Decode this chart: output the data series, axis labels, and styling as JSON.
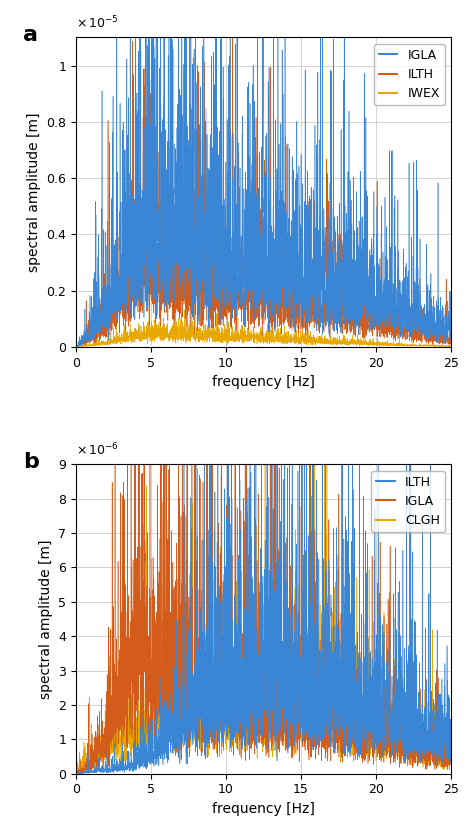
{
  "panel_a": {
    "label": "a",
    "legend": [
      "IGLA",
      "ILTH",
      "IWEX"
    ],
    "colors": [
      "#3a86d4",
      "#d45c1a",
      "#e8a800"
    ],
    "ylabel": "spectral amplitude [m]",
    "xlabel": "frequency [Hz]",
    "xlim": [
      0,
      25
    ],
    "ylim": [
      0,
      1.1e-05
    ],
    "yticks": [
      0,
      2e-06,
      4e-06,
      6e-06,
      8e-06,
      1e-05
    ],
    "ytick_labels": [
      "0",
      "0.2",
      "0.4",
      "0.6",
      "0.8",
      "1"
    ],
    "scale_exp": -5,
    "xticks": [
      0,
      5,
      10,
      15,
      20,
      25
    ]
  },
  "panel_b": {
    "label": "b",
    "legend": [
      "ILTH",
      "IGLA",
      "CLGH"
    ],
    "colors": [
      "#3a86d4",
      "#d45c1a",
      "#e8a800"
    ],
    "ylabel": "spectral amplitude [m]",
    "xlabel": "frequency [Hz]",
    "xlim": [
      0,
      25
    ],
    "ylim": [
      0,
      9e-06
    ],
    "yticks": [
      0,
      1e-06,
      2e-06,
      3e-06,
      4e-06,
      5e-06,
      6e-06,
      7e-06,
      8e-06,
      9e-06
    ],
    "ytick_labels": [
      "0",
      "1",
      "2",
      "3",
      "4",
      "5",
      "6",
      "7",
      "8",
      "9"
    ],
    "scale_exp": -6,
    "xticks": [
      0,
      5,
      10,
      15,
      20,
      25
    ]
  },
  "background_color": "#ffffff",
  "grid_color": "#cccccc",
  "seed": 42
}
